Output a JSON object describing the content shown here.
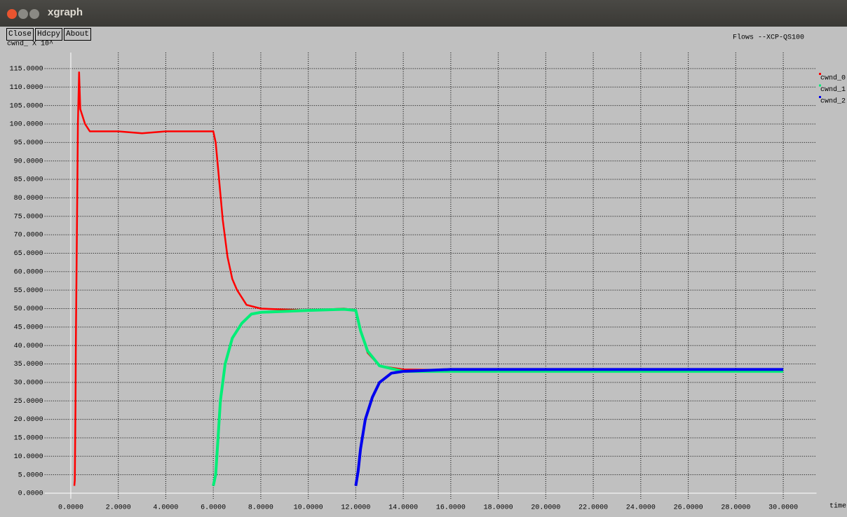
{
  "window": {
    "title": "xgraph",
    "buttons": [
      "Close",
      "Hdcpy",
      "About"
    ]
  },
  "chart_data": {
    "type": "line",
    "title": "Flows --XCP-QS100",
    "y_label": "cwnd_ X 10^",
    "x_label": "time",
    "xlim": [
      -1.1,
      31.4
    ],
    "ylim": [
      -1.5,
      121.8
    ],
    "grid": true,
    "xticks": [
      {
        "value": 0,
        "label": "0.0000"
      },
      {
        "value": 2,
        "label": "2.0000"
      },
      {
        "value": 4,
        "label": "4.0000"
      },
      {
        "value": 6,
        "label": "6.0000"
      },
      {
        "value": 8,
        "label": "8.0000"
      },
      {
        "value": 10,
        "label": "10.0000"
      },
      {
        "value": 12,
        "label": "12.0000"
      },
      {
        "value": 14,
        "label": "14.0000"
      },
      {
        "value": 16,
        "label": "16.0000"
      },
      {
        "value": 18,
        "label": "18.0000"
      },
      {
        "value": 20,
        "label": "20.0000"
      },
      {
        "value": 22,
        "label": "22.0000"
      },
      {
        "value": 24,
        "label": "24.0000"
      },
      {
        "value": 26,
        "label": "26.0000"
      },
      {
        "value": 28,
        "label": "28.0000"
      },
      {
        "value": 30,
        "label": "30.0000"
      }
    ],
    "yticks": [
      {
        "value": 0,
        "label": "0.0000"
      },
      {
        "value": 5,
        "label": "5.0000"
      },
      {
        "value": 10,
        "label": "10.0000"
      },
      {
        "value": 15,
        "label": "15.0000"
      },
      {
        "value": 20,
        "label": "20.0000"
      },
      {
        "value": 25,
        "label": "25.0000"
      },
      {
        "value": 30,
        "label": "30.0000"
      },
      {
        "value": 35,
        "label": "35.0000"
      },
      {
        "value": 40,
        "label": "40.0000"
      },
      {
        "value": 45,
        "label": "45.0000"
      },
      {
        "value": 50,
        "label": "50.0000"
      },
      {
        "value": 55,
        "label": "55.0000"
      },
      {
        "value": 60,
        "label": "60.0000"
      },
      {
        "value": 65,
        "label": "65.0000"
      },
      {
        "value": 70,
        "label": "70.0000"
      },
      {
        "value": 75,
        "label": "75.0000"
      },
      {
        "value": 80,
        "label": "80.0000"
      },
      {
        "value": 85,
        "label": "85.0000"
      },
      {
        "value": 90,
        "label": "90.0000"
      },
      {
        "value": 95,
        "label": "95.0000"
      },
      {
        "value": 100,
        "label": "100.0000"
      },
      {
        "value": 105,
        "label": "105.0000"
      },
      {
        "value": 110,
        "label": "110.0000"
      },
      {
        "value": 115,
        "label": "115.0000"
      }
    ],
    "series": [
      {
        "name": "cwnd_0",
        "color": "#ff0000",
        "width": 2.5,
        "x": [
          0.15,
          0.17,
          0.2,
          0.21,
          0.22,
          0.25,
          0.28,
          0.3,
          0.35,
          0.4,
          0.5,
          0.6,
          0.8,
          1,
          2,
          3,
          4,
          5,
          6,
          6.1,
          6.2,
          6.4,
          6.6,
          6.8,
          7,
          7.4,
          8,
          10,
          11.5,
          12,
          12.2,
          12.5,
          13,
          13.5,
          14,
          20,
          30
        ],
        "values": [
          2,
          3.5,
          24,
          38,
          45,
          65,
          85,
          100,
          114,
          104,
          102,
          100,
          98,
          98,
          98,
          97.5,
          98,
          98,
          98,
          95,
          88,
          74,
          64,
          58,
          55,
          51,
          50,
          49.5,
          50,
          49.5,
          44,
          38,
          34.5,
          34,
          33.5,
          33,
          33
        ]
      },
      {
        "name": "cwnd_1",
        "color": "#00ee77",
        "width": 4,
        "x": [
          6.0,
          6.1,
          6.2,
          6.3,
          6.5,
          6.8,
          7.2,
          7.6,
          8,
          10,
          11.5,
          12,
          12.2,
          12.5,
          13,
          14,
          20,
          30
        ],
        "values": [
          2,
          5,
          15,
          25,
          35,
          42,
          46,
          48.5,
          49,
          49.5,
          49.8,
          49.5,
          44,
          38.5,
          34.5,
          33,
          33,
          33
        ]
      },
      {
        "name": "cwnd_2",
        "color": "#0000ee",
        "width": 4,
        "x": [
          12,
          12.1,
          12.2,
          12.4,
          12.7,
          13,
          13.5,
          14,
          16,
          20,
          30
        ],
        "values": [
          2,
          6,
          12,
          20,
          26,
          30,
          32.5,
          33,
          33.5,
          33.5,
          33.5
        ]
      }
    ]
  }
}
